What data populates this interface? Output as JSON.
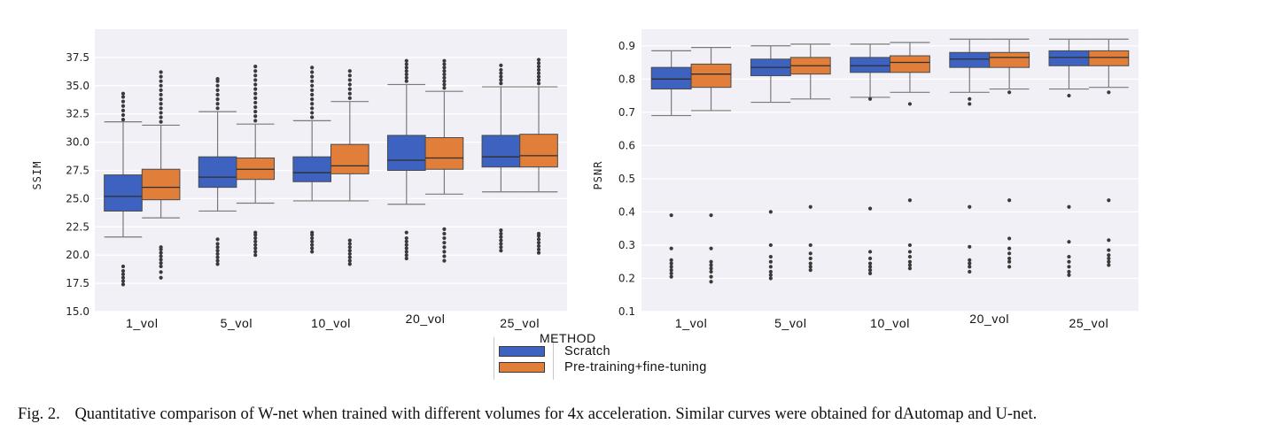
{
  "colors": {
    "scratch": "#3d62c0",
    "pretrain": "#e17f3a",
    "panel_bg": "#f1f0f6",
    "grid": "#ffffff",
    "whisker": "#7a7a7a",
    "median": "#2e2e2e",
    "outlier": "#3a3a3a"
  },
  "legend": {
    "title": "METHOD",
    "items": [
      {
        "label": "Scratch",
        "color": "#3d62c0"
      },
      {
        "label": "Pre-training+fine-tuning",
        "color": "#e17f3a"
      }
    ]
  },
  "caption": {
    "fig_label": "Fig. 2.",
    "text": "Quantitative comparison of W-net when trained with different volumes for 4x acceleration. Similar curves were obtained for dAutomap and U-net."
  },
  "chart_data": [
    {
      "type": "box",
      "ylabel": "SSIM",
      "xlabel": "",
      "categories": [
        "1_vol",
        "5_vol",
        "10_vol",
        "20_vol",
        "25_vol"
      ],
      "ylim": [
        15.0,
        40.0
      ],
      "yticks": [
        15.0,
        17.5,
        20.0,
        22.5,
        25.0,
        27.5,
        30.0,
        32.5,
        35.0,
        37.5
      ],
      "grid": true,
      "series": [
        {
          "name": "Scratch",
          "boxes": [
            {
              "whisker_low": 21.6,
              "q1": 23.9,
              "median": 25.2,
              "q3": 27.1,
              "whisker_high": 31.8,
              "outliers_high": [
                32.0,
                32.4,
                32.8,
                33.2,
                33.6,
                34.0,
                34.3
              ],
              "outliers_low": [
                17.4,
                17.7,
                18.0,
                18.3,
                18.6,
                19.0
              ]
            },
            {
              "whisker_low": 23.9,
              "q1": 26.0,
              "median": 26.9,
              "q3": 28.7,
              "whisker_high": 32.7,
              "outliers_high": [
                33.0,
                33.4,
                33.8,
                34.2,
                34.6,
                35.0,
                35.4,
                35.6
              ],
              "outliers_low": [
                19.2,
                19.5,
                19.8,
                20.1,
                20.4,
                20.7,
                21.0,
                21.4
              ]
            },
            {
              "whisker_low": 24.8,
              "q1": 26.5,
              "median": 27.3,
              "q3": 28.7,
              "whisker_high": 31.9,
              "outliers_high": [
                32.2,
                32.6,
                33.0,
                33.4,
                33.8,
                34.2,
                34.6,
                35.0,
                35.4,
                35.8,
                36.2,
                36.6
              ],
              "outliers_low": [
                20.3,
                20.6,
                20.9,
                21.2,
                21.5,
                21.8,
                22.0
              ]
            },
            {
              "whisker_low": 24.5,
              "q1": 27.5,
              "median": 28.4,
              "q3": 30.6,
              "whisker_high": 35.1,
              "outliers_high": [
                35.4,
                35.7,
                36.0,
                36.3,
                36.6,
                36.9,
                37.2
              ],
              "outliers_low": [
                19.7,
                20.0,
                20.3,
                20.6,
                20.9,
                21.2,
                21.5,
                22.0
              ]
            },
            {
              "whisker_low": 25.6,
              "q1": 27.8,
              "median": 28.7,
              "q3": 30.6,
              "whisker_high": 34.9,
              "outliers_high": [
                35.2,
                35.5,
                35.8,
                36.1,
                36.4,
                36.8
              ],
              "outliers_low": [
                20.4,
                20.7,
                21.0,
                21.3,
                21.6,
                21.9,
                22.2
              ]
            }
          ]
        },
        {
          "name": "Pre-training+fine-tuning",
          "boxes": [
            {
              "whisker_low": 23.3,
              "q1": 24.9,
              "median": 26.0,
              "q3": 27.6,
              "whisker_high": 31.5,
              "outliers_high": [
                31.8,
                32.2,
                32.6,
                33.0,
                33.4,
                33.8,
                34.2,
                34.6,
                35.0,
                35.4,
                35.8,
                36.2
              ],
              "outliers_low": [
                18.0,
                18.5,
                19.0,
                19.3,
                19.6,
                19.9,
                20.2,
                20.5,
                20.7
              ]
            },
            {
              "whisker_low": 24.6,
              "q1": 26.7,
              "median": 27.6,
              "q3": 28.6,
              "whisker_high": 31.6,
              "outliers_high": [
                31.9,
                32.3,
                32.7,
                33.1,
                33.5,
                33.9,
                34.3,
                34.7,
                35.1,
                35.5,
                35.9,
                36.3,
                36.7
              ],
              "outliers_low": [
                20.0,
                20.3,
                20.6,
                20.9,
                21.2,
                21.5,
                21.8,
                22.0
              ]
            },
            {
              "whisker_low": 24.8,
              "q1": 27.2,
              "median": 27.9,
              "q3": 29.8,
              "whisker_high": 33.6,
              "outliers_high": [
                33.9,
                34.3,
                34.7,
                35.1,
                35.5,
                35.9,
                36.3
              ],
              "outliers_low": [
                19.2,
                19.5,
                19.8,
                20.1,
                20.4,
                20.7,
                21.0,
                21.3
              ]
            },
            {
              "whisker_low": 25.4,
              "q1": 27.6,
              "median": 28.6,
              "q3": 30.4,
              "whisker_high": 34.5,
              "outliers_high": [
                34.8,
                35.1,
                35.4,
                35.7,
                36.0,
                36.3,
                36.6,
                36.9,
                37.2
              ],
              "outliers_low": [
                19.5,
                19.9,
                20.3,
                20.7,
                21.1,
                21.5,
                21.9,
                22.3
              ]
            },
            {
              "whisker_low": 25.6,
              "q1": 27.8,
              "median": 28.8,
              "q3": 30.7,
              "whisker_high": 34.9,
              "outliers_high": [
                35.2,
                35.5,
                35.8,
                36.1,
                36.4,
                36.7,
                37.0,
                37.3
              ],
              "outliers_low": [
                20.2,
                20.5,
                20.8,
                21.1,
                21.4,
                21.7,
                21.9
              ]
            }
          ]
        }
      ]
    },
    {
      "type": "box",
      "ylabel": "PSNR",
      "xlabel": "",
      "categories": [
        "1_vol",
        "5_vol",
        "10_vol",
        "20_vol",
        "25_vol"
      ],
      "ylim": [
        0.1,
        0.95
      ],
      "yticks": [
        0.1,
        0.2,
        0.3,
        0.4,
        0.5,
        0.6,
        0.7,
        0.8,
        0.9
      ],
      "grid": true,
      "series": [
        {
          "name": "Scratch",
          "boxes": [
            {
              "whisker_low": 0.69,
              "q1": 0.77,
              "median": 0.8,
              "q3": 0.835,
              "whisker_high": 0.885,
              "outliers_high": [],
              "outliers_low": [
                0.39,
                0.29,
                0.255,
                0.245,
                0.235,
                0.225,
                0.215,
                0.205
              ]
            },
            {
              "whisker_low": 0.73,
              "q1": 0.81,
              "median": 0.835,
              "q3": 0.86,
              "whisker_high": 0.9,
              "outliers_high": [],
              "outliers_low": [
                0.4,
                0.3,
                0.265,
                0.25,
                0.235,
                0.22,
                0.21,
                0.2
              ]
            },
            {
              "whisker_low": 0.745,
              "q1": 0.82,
              "median": 0.84,
              "q3": 0.865,
              "whisker_high": 0.905,
              "outliers_high": [],
              "outliers_low": [
                0.74,
                0.41,
                0.28,
                0.26,
                0.245,
                0.235,
                0.225,
                0.215
              ]
            },
            {
              "whisker_low": 0.76,
              "q1": 0.835,
              "median": 0.86,
              "q3": 0.88,
              "whisker_high": 0.92,
              "outliers_high": [],
              "outliers_low": [
                0.74,
                0.725,
                0.415,
                0.295,
                0.255,
                0.245,
                0.235,
                0.22
              ]
            },
            {
              "whisker_low": 0.77,
              "q1": 0.84,
              "median": 0.865,
              "q3": 0.885,
              "whisker_high": 0.92,
              "outliers_high": [],
              "outliers_low": [
                0.75,
                0.415,
                0.31,
                0.265,
                0.25,
                0.235,
                0.22,
                0.21
              ]
            }
          ]
        },
        {
          "name": "Pre-training+fine-tuning",
          "boxes": [
            {
              "whisker_low": 0.705,
              "q1": 0.775,
              "median": 0.815,
              "q3": 0.845,
              "whisker_high": 0.895,
              "outliers_high": [],
              "outliers_low": [
                0.39,
                0.29,
                0.25,
                0.24,
                0.23,
                0.22,
                0.205,
                0.19
              ]
            },
            {
              "whisker_low": 0.74,
              "q1": 0.815,
              "median": 0.84,
              "q3": 0.865,
              "whisker_high": 0.905,
              "outliers_high": [],
              "outliers_low": [
                0.415,
                0.3,
                0.275,
                0.26,
                0.245,
                0.235,
                0.225
              ]
            },
            {
              "whisker_low": 0.76,
              "q1": 0.82,
              "median": 0.85,
              "q3": 0.87,
              "whisker_high": 0.91,
              "outliers_high": [],
              "outliers_low": [
                0.725,
                0.435,
                0.3,
                0.28,
                0.265,
                0.25,
                0.24,
                0.23
              ]
            },
            {
              "whisker_low": 0.77,
              "q1": 0.835,
              "median": 0.865,
              "q3": 0.88,
              "whisker_high": 0.92,
              "outliers_high": [],
              "outliers_low": [
                0.76,
                0.435,
                0.32,
                0.29,
                0.275,
                0.26,
                0.25,
                0.235
              ]
            },
            {
              "whisker_low": 0.775,
              "q1": 0.84,
              "median": 0.865,
              "q3": 0.885,
              "whisker_high": 0.92,
              "outliers_high": [],
              "outliers_low": [
                0.76,
                0.435,
                0.315,
                0.285,
                0.27,
                0.26,
                0.25,
                0.24
              ]
            }
          ]
        }
      ]
    }
  ]
}
